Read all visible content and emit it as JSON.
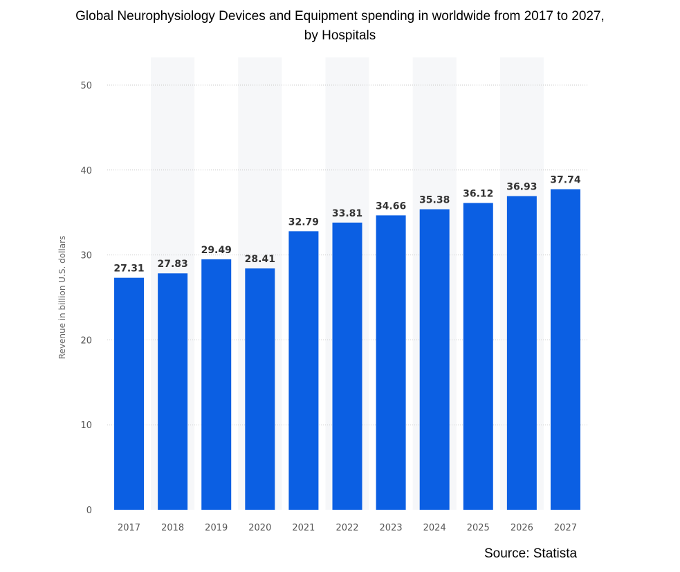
{
  "chart_data": {
    "type": "bar",
    "title_line1": "Global Neurophysiology Devices and Equipment spending in worldwide from 2017 to 2027,",
    "title_line2": "by Hospitals",
    "categories": [
      "2017",
      "2018",
      "2019",
      "2020",
      "2021",
      "2022",
      "2023",
      "2024",
      "2025",
      "2026",
      "2027"
    ],
    "values": [
      27.31,
      27.83,
      29.49,
      28.41,
      32.79,
      33.81,
      34.66,
      35.38,
      36.12,
      36.93,
      37.74
    ],
    "value_labels": [
      "27.31",
      "27.83",
      "29.49",
      "28.41",
      "32.79",
      "33.81",
      "34.66",
      "35.38",
      "36.12",
      "36.93",
      "37.74"
    ],
    "xlabel": "",
    "ylabel": "Revenue in billion U.S. dollars",
    "ylim": [
      0,
      50
    ],
    "yticks": [
      "0",
      "10",
      "20",
      "30",
      "40",
      "50"
    ],
    "grid": true,
    "bar_color": "#0b5fe3",
    "source": "Source: Statista"
  }
}
